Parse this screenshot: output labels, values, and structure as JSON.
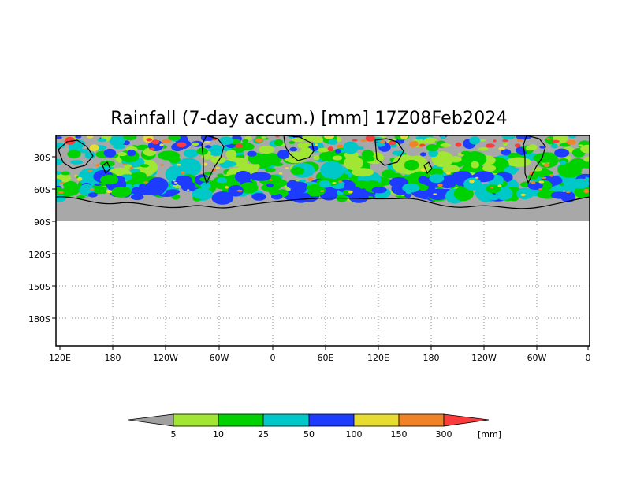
{
  "title": "Rainfall (7-day accum.) [mm] 17Z08Feb2024",
  "map": {
    "x_tick_labels": [
      "120E",
      "180",
      "120W",
      "60W",
      "0",
      "60E",
      "120E",
      "180",
      "120W",
      "60W",
      "0"
    ],
    "y_tick_labels": [
      "30S",
      "60S",
      "90S",
      "120S",
      "150S",
      "180S"
    ],
    "no_data_color": "#a8a8a8",
    "coastline_color": "#000000"
  },
  "colorbar": {
    "labels": [
      "5",
      "10",
      "25",
      "50",
      "100",
      "150",
      "300"
    ],
    "unit": "[mm]",
    "colors": [
      "#a0a0a0",
      "#a0e632",
      "#00d200",
      "#00c8c8",
      "#1e3cff",
      "#e6dc32",
      "#f08228",
      "#fa3c3c"
    ]
  }
}
